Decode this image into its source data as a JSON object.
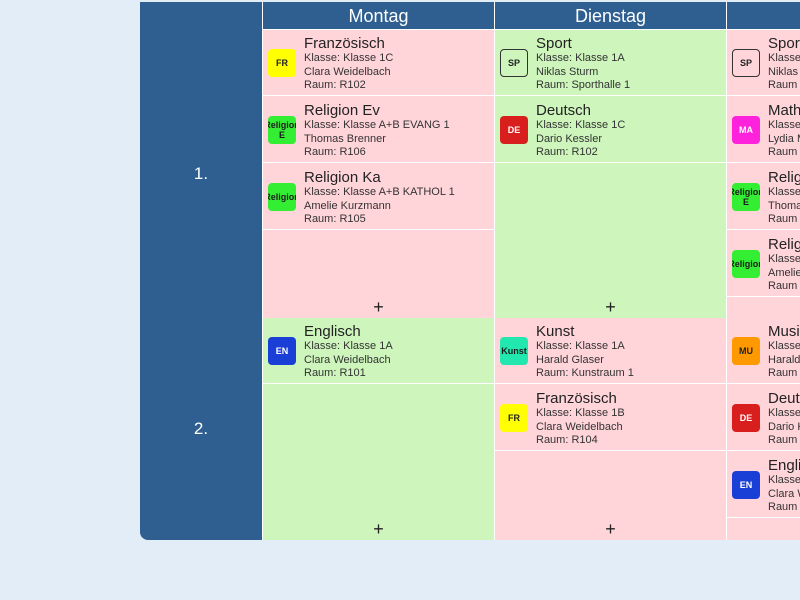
{
  "days": [
    "Montag",
    "Dienstag",
    ""
  ],
  "periods": [
    "1.",
    "2."
  ],
  "add_label": "+",
  "colors": {
    "header": "#2e5f90",
    "cell_pink": "#ffd5da",
    "cell_green": "#cdf5bc"
  },
  "grid": [
    [
      {
        "bg": "#ffd5da",
        "lessons": [
          {
            "badge": "FR",
            "badge_color": "#ffff00",
            "badge_text_color": "#222222",
            "subject": "Französisch",
            "class": "Klasse: Klasse 1C",
            "teacher": "Clara Weidelbach",
            "room": "Raum: R102"
          },
          {
            "badge": "Religion E",
            "badge_color": "#33ee33",
            "badge_text_color": "#1a1a1a",
            "subject": "Religion Ev",
            "class": "Klasse: Klasse A+B EVANG 1",
            "teacher": "Thomas Brenner",
            "room": "Raum: R106"
          },
          {
            "badge": "Religion",
            "badge_color": "#33ee33",
            "badge_text_color": "#1a1a1a",
            "subject": "Religion Ka",
            "class": "Klasse: Klasse A+B KATHOL 1",
            "teacher": "Amelie Kurzmann",
            "room": "Raum: R105"
          }
        ]
      },
      {
        "bg": "#cdf5bc",
        "lessons": [
          {
            "badge": "SP",
            "badge_color": "transparent",
            "badge_text_color": "#222222",
            "outlined": true,
            "subject": "Sport",
            "class": "Klasse: Klasse 1A",
            "teacher": "Niklas Sturm",
            "room": "Raum: Sporthalle 1"
          },
          {
            "badge": "DE",
            "badge_color": "#d91e1e",
            "badge_text_color": "#ffffff",
            "subject": "Deutsch",
            "class": "Klasse: Klasse 1C",
            "teacher": "Dario Kessler",
            "room": "Raum: R102"
          }
        ]
      },
      {
        "bg": "#ffd5da",
        "lessons": [
          {
            "badge": "SP",
            "badge_color": "transparent",
            "badge_text_color": "#222222",
            "outlined": true,
            "subject": "Sport",
            "class": "Klasse",
            "teacher": "Niklas",
            "room": "Raum"
          },
          {
            "badge": "MA",
            "badge_color": "#ff22dd",
            "badge_text_color": "#ffffff",
            "subject": "Math",
            "class": "Klasse",
            "teacher": "Lydia M",
            "room": "Raum"
          },
          {
            "badge": "Religion E",
            "badge_color": "#33ee33",
            "badge_text_color": "#1a1a1a",
            "subject": "Relig",
            "class": "Klasse",
            "teacher": "Thoma",
            "room": "Raum"
          },
          {
            "badge": "Religion",
            "badge_color": "#33ee33",
            "badge_text_color": "#1a1a1a",
            "subject": "Relig",
            "class": "Klasse",
            "teacher": "Amelie",
            "room": "Raum"
          }
        ]
      }
    ],
    [
      {
        "bg": "#cdf5bc",
        "lessons": [
          {
            "badge": "EN",
            "badge_color": "#1a3fd6",
            "badge_text_color": "#ffffff",
            "subject": "Englisch",
            "class": "Klasse: Klasse 1A",
            "teacher": "Clara Weidelbach",
            "room": "Raum: R101"
          }
        ]
      },
      {
        "bg": "#ffd5da",
        "lessons": [
          {
            "badge": "Kunst",
            "badge_color": "#22e8b0",
            "badge_text_color": "#1a1a1a",
            "subject": "Kunst",
            "class": "Klasse: Klasse 1A",
            "teacher": "Harald Glaser",
            "room": "Raum: Kunstraum 1"
          },
          {
            "badge": "FR",
            "badge_color": "#ffff00",
            "badge_text_color": "#222222",
            "subject": "Französisch",
            "class": "Klasse: Klasse 1B",
            "teacher": "Clara Weidelbach",
            "room": "Raum: R104"
          }
        ]
      },
      {
        "bg": "#ffd5da",
        "lessons": [
          {
            "badge": "MU",
            "badge_color": "#ff9900",
            "badge_text_color": "#222222",
            "subject": "Musi",
            "class": "Klasse",
            "teacher": "Harald",
            "room": "Raum"
          },
          {
            "badge": "DE",
            "badge_color": "#d91e1e",
            "badge_text_color": "#ffffff",
            "subject": "Deuts",
            "class": "Klasse",
            "teacher": "Dario K",
            "room": "Raum"
          },
          {
            "badge": "EN",
            "badge_color": "#1a3fd6",
            "badge_text_color": "#ffffff",
            "subject": "Engli",
            "class": "Klasse",
            "teacher": "Clara W",
            "room": "Raum"
          }
        ]
      }
    ]
  ]
}
